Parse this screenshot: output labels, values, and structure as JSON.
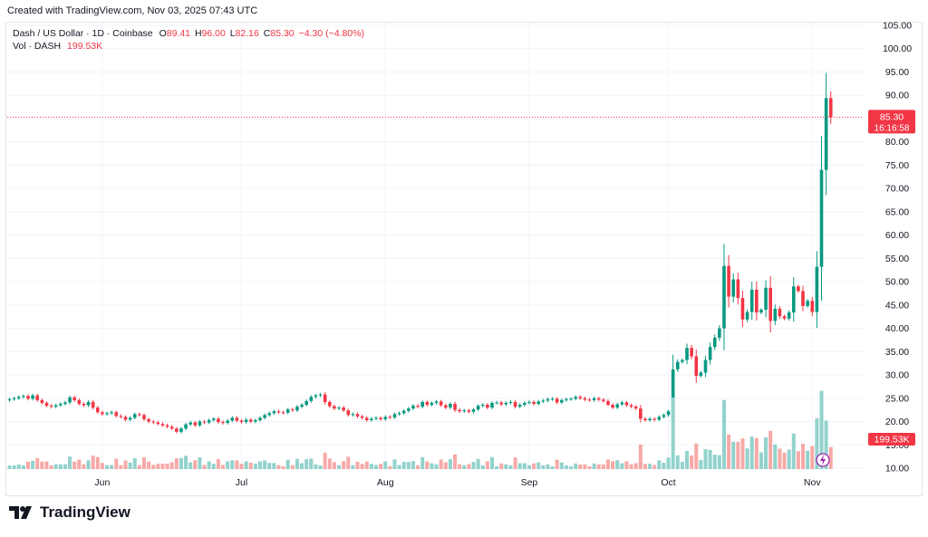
{
  "header": {
    "created": "Created with TradingView.com, Nov 03, 2025 07:43 UTC"
  },
  "legend": {
    "symbol": "Dash / US Dollar · 1D · Coinbase",
    "o_label": "O",
    "o": "89.41",
    "h_label": "H",
    "h": "96.00",
    "l_label": "L",
    "l": "82.16",
    "c_label": "C",
    "c": "85.30",
    "change": "−4.30 (−4.80%)",
    "vol_label": "Vol · DASH",
    "vol": "199.53K"
  },
  "price_tag": {
    "price": "85.30",
    "countdown": "16:16:58"
  },
  "vol_tag": "199.53K",
  "brand": "TradingView",
  "colors": {
    "up": "#089981",
    "down": "#f23645",
    "vol_up": "#92d2cc",
    "vol_down": "#f7a9a7",
    "grid": "#f0f3fa"
  },
  "chart_data": {
    "type": "candlestick",
    "ylim": [
      10,
      105
    ],
    "y_ticks": [
      "10.00",
      "15.00",
      "20.00",
      "25.00",
      "30.00",
      "35.00",
      "40.00",
      "45.00",
      "50.00",
      "55.00",
      "60.00",
      "65.00",
      "70.00",
      "75.00",
      "80.00",
      "85.00",
      "90.00",
      "95.00",
      "100.00",
      "105.00"
    ],
    "x_ticks": [
      {
        "label": "Jun",
        "index": 20
      },
      {
        "label": "Jul",
        "index": 50
      },
      {
        "label": "Aug",
        "index": 81
      },
      {
        "label": "Sep",
        "index": 112
      },
      {
        "label": "Oct",
        "index": 142
      },
      {
        "label": "Nov",
        "index": 173
      }
    ],
    "close": [
      24.8,
      25.0,
      25.3,
      25.5,
      24.9,
      25.6,
      24.6,
      24.0,
      23.4,
      23.2,
      23.5,
      23.8,
      24.1,
      25.2,
      24.6,
      23.8,
      23.5,
      24.2,
      23.0,
      22.0,
      21.6,
      21.8,
      22.0,
      21.2,
      21.0,
      20.4,
      20.8,
      21.6,
      21.4,
      20.5,
      20.0,
      19.8,
      19.5,
      19.2,
      18.9,
      18.5,
      17.8,
      18.5,
      19.4,
      19.8,
      19.2,
      20.0,
      19.8,
      20.3,
      20.6,
      19.9,
      19.7,
      20.2,
      20.8,
      20.2,
      19.9,
      20.4,
      20.0,
      20.3,
      20.8,
      21.4,
      21.8,
      22.2,
      22.0,
      21.9,
      22.6,
      22.4,
      23.2,
      23.6,
      24.4,
      25.3,
      25.6,
      25.8,
      24.2,
      23.3,
      22.8,
      23.0,
      22.4,
      21.4,
      21.6,
      21.1,
      20.8,
      20.3,
      20.6,
      20.8,
      20.5,
      21.0,
      20.9,
      21.6,
      21.8,
      22.3,
      22.8,
      23.4,
      23.2,
      24.2,
      23.6,
      24.0,
      24.3,
      23.5,
      23.0,
      23.8,
      22.5,
      22.2,
      22.4,
      22.1,
      22.6,
      23.4,
      23.6,
      23.0,
      24.0,
      24.1,
      23.7,
      24.0,
      24.2,
      23.2,
      23.6,
      24.0,
      24.2,
      23.8,
      24.3,
      24.5,
      24.8,
      24.9,
      24.1,
      24.6,
      24.8,
      24.9,
      25.3,
      25.0,
      24.7,
      24.6,
      25.0,
      24.7,
      24.4,
      23.6,
      23.0,
      23.7,
      24.1,
      23.5,
      23.2,
      22.8,
      20.6,
      20.3,
      20.6,
      20.4,
      21.0,
      21.4,
      22.2,
      31.2,
      32.8,
      33.2,
      35.8,
      34.0,
      29.8,
      30.5,
      33.2,
      36.0,
      38.0,
      40.0,
      53.4,
      46.8,
      50.5,
      46.5,
      41.9,
      43.5,
      48.3,
      43.4,
      44.0,
      48.7,
      41.6,
      44.2,
      42.6,
      42.1,
      43.4,
      49.0,
      48.0,
      44.8,
      45.9,
      43.5,
      53.2,
      74.0,
      89.4,
      85.3
    ],
    "volume_max_ref": 33.8
  }
}
